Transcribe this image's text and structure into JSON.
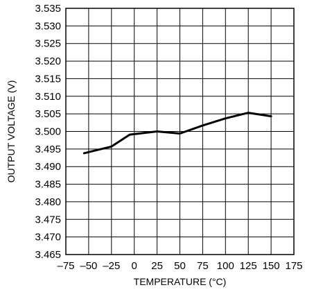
{
  "chart_data": {
    "type": "line",
    "title": "",
    "xlabel": "TEMPERATURE (°C)",
    "ylabel": "OUTPUT VOLTAGE (V)",
    "xlim": [
      -75,
      175
    ],
    "ylim": [
      3.465,
      3.535
    ],
    "grid": true,
    "x_ticks": [
      "–75",
      "–50",
      "–25",
      "0",
      "25",
      "50",
      "75",
      "100",
      "125",
      "150",
      "175"
    ],
    "y_ticks": [
      "3.535",
      "3.530",
      "3.525",
      "3.520",
      "3.515",
      "3.510",
      "3.505",
      "3.500",
      "3.495",
      "3.490",
      "3.485",
      "3.480",
      "3.475",
      "3.470",
      "3.465"
    ],
    "series": [
      {
        "x": [
          -55,
          -25,
          -5,
          25,
          50,
          75,
          100,
          125,
          150
        ],
        "y": [
          3.4938,
          3.4957,
          3.4991,
          3.5,
          3.4994,
          3.5017,
          3.5037,
          3.5053,
          3.5043
        ]
      }
    ]
  }
}
